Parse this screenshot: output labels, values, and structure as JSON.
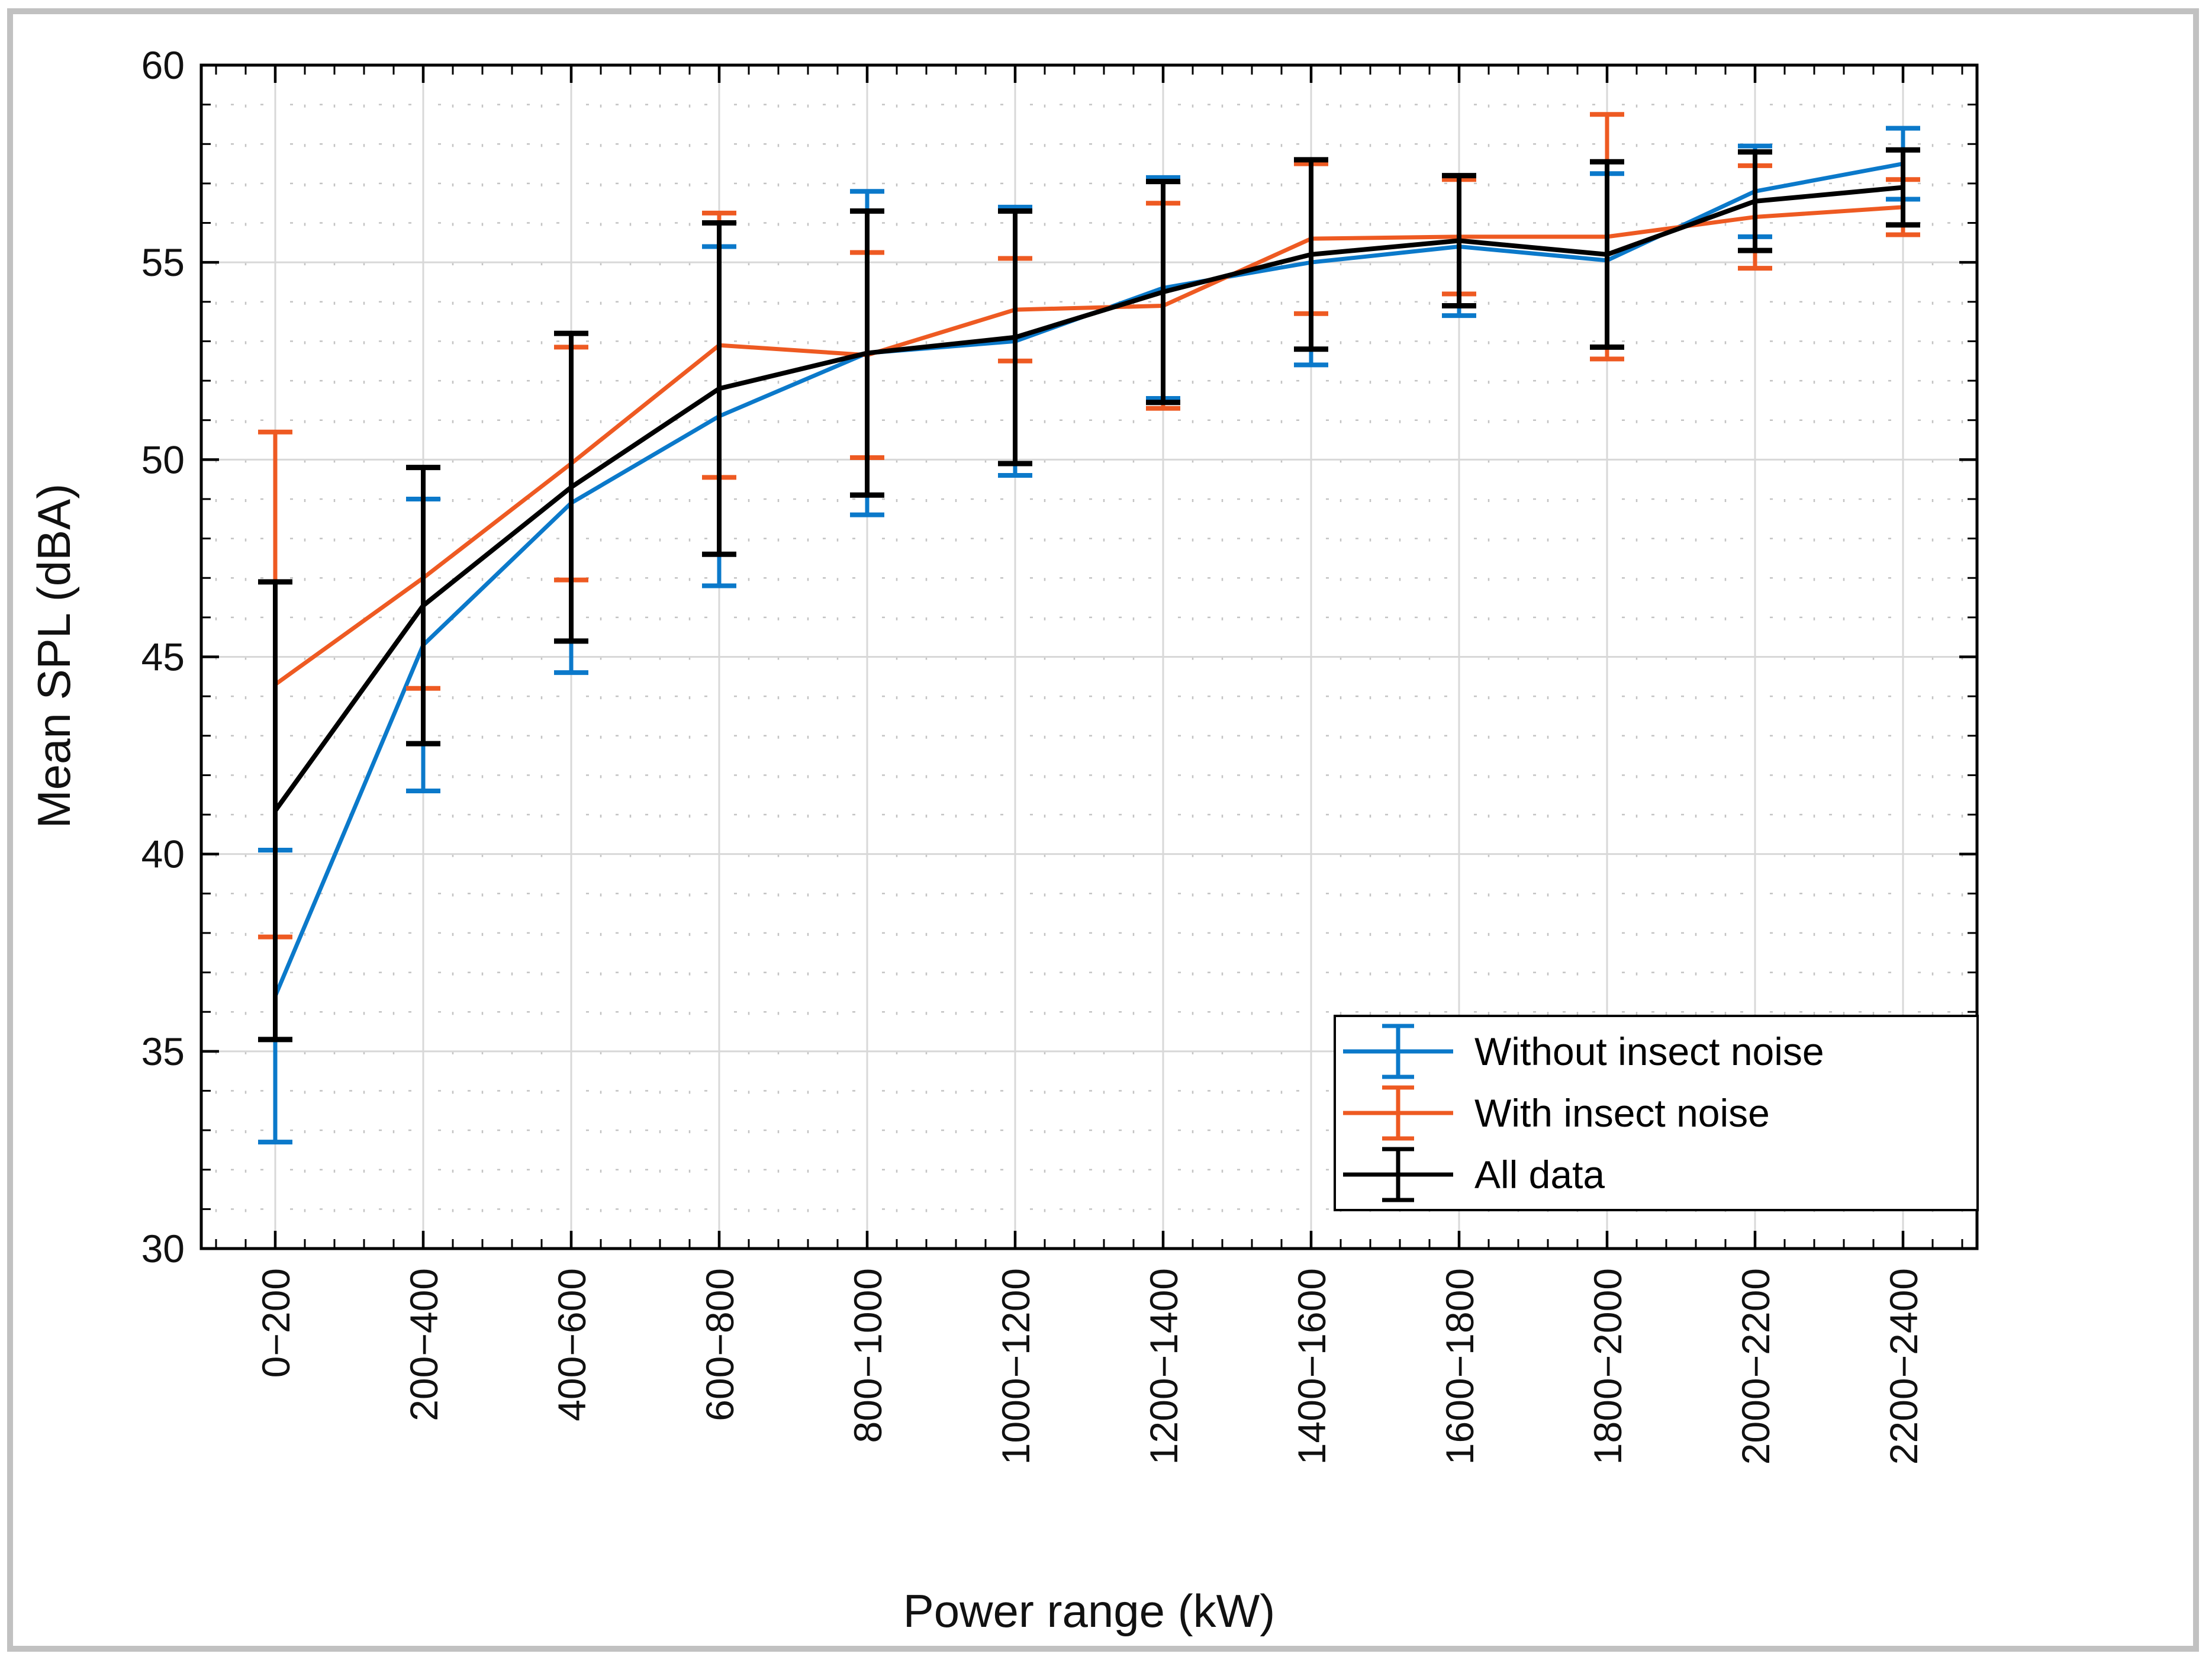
{
  "figure": {
    "background": "#ffffff",
    "frame_color": "#c1c1c1"
  },
  "chart_data": {
    "type": "line",
    "title": "",
    "xlabel": "Power range (kW)",
    "ylabel": "Mean SPL (dBA)",
    "ylim": [
      30,
      60
    ],
    "yticks": [
      "30",
      "35",
      "40",
      "45",
      "50",
      "55",
      "60"
    ],
    "y_minor_step": 1,
    "x_minor_per_interval": 5,
    "grid": {
      "major": true,
      "minor": true,
      "major_color": "#d8d8d8",
      "minor_color": "#c3c3c3"
    },
    "legend_position": "bottom-right",
    "categories": [
      "0−200",
      "200−400",
      "400−600",
      "600−800",
      "800−1000",
      "1000−1200",
      "1200−1400",
      "1400−1600",
      "1600−1800",
      "1800−2000",
      "2000−2200",
      "2200−2400"
    ],
    "series": [
      {
        "name": "Without insect noise",
        "color": "#0b79ca",
        "values": [
          36.4,
          45.3,
          48.9,
          51.1,
          52.7,
          53.0,
          54.35,
          55.0,
          55.4,
          55.05,
          56.8,
          57.5
        ],
        "errors": [
          3.7,
          3.7,
          4.3,
          4.3,
          4.1,
          3.4,
          2.8,
          2.6,
          1.75,
          2.2,
          1.15,
          0.9
        ]
      },
      {
        "name": "With insect noise",
        "color": "#ee5a22",
        "values": [
          44.3,
          47.0,
          49.9,
          52.9,
          52.65,
          53.8,
          53.9,
          55.6,
          55.65,
          55.65,
          56.15,
          56.4
        ],
        "errors": [
          6.4,
          2.8,
          2.95,
          3.35,
          2.6,
          1.3,
          2.6,
          1.9,
          1.45,
          3.1,
          1.3,
          0.7
        ]
      },
      {
        "name": "All data",
        "color": "#000000",
        "values": [
          41.1,
          46.3,
          49.3,
          51.8,
          52.7,
          53.1,
          54.25,
          55.2,
          55.55,
          55.2,
          56.55,
          56.9
        ],
        "errors": [
          5.8,
          3.5,
          3.9,
          4.2,
          3.6,
          3.2,
          2.8,
          2.4,
          1.65,
          2.35,
          1.25,
          0.95
        ]
      }
    ]
  }
}
